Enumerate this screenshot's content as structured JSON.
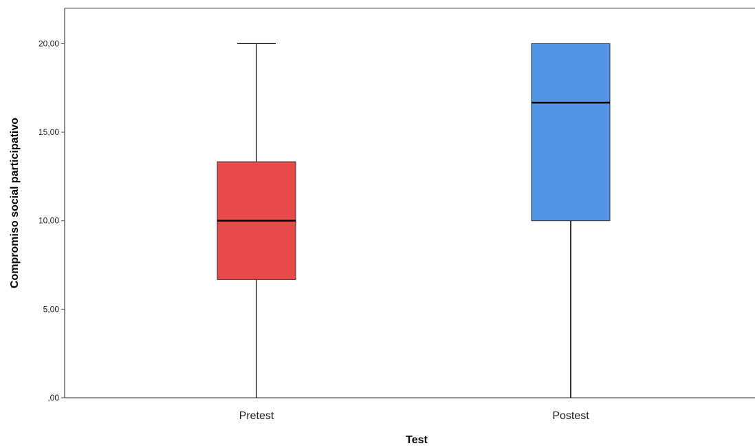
{
  "chart_data": {
    "type": "boxplot",
    "xlabel": "Test",
    "ylabel": "Compromiso social participativo",
    "ylim": [
      0,
      22
    ],
    "yticks": [
      0,
      5,
      10,
      15,
      20
    ],
    "ytick_labels": [
      ",00",
      "5,00",
      "10,00",
      "15,00",
      "20,00"
    ],
    "categories": [
      "Pretest",
      "Postest"
    ],
    "boxes": [
      {
        "category": "Pretest",
        "min": 0,
        "q1": 6.67,
        "median": 10.0,
        "q3": 13.33,
        "max": 20.0,
        "color": "#E84A4A"
      },
      {
        "category": "Postest",
        "min": 0,
        "q1": 10.0,
        "median": 16.67,
        "q3": 20.0,
        "max": 20.0,
        "color": "#5294E2"
      }
    ],
    "grid": false
  }
}
